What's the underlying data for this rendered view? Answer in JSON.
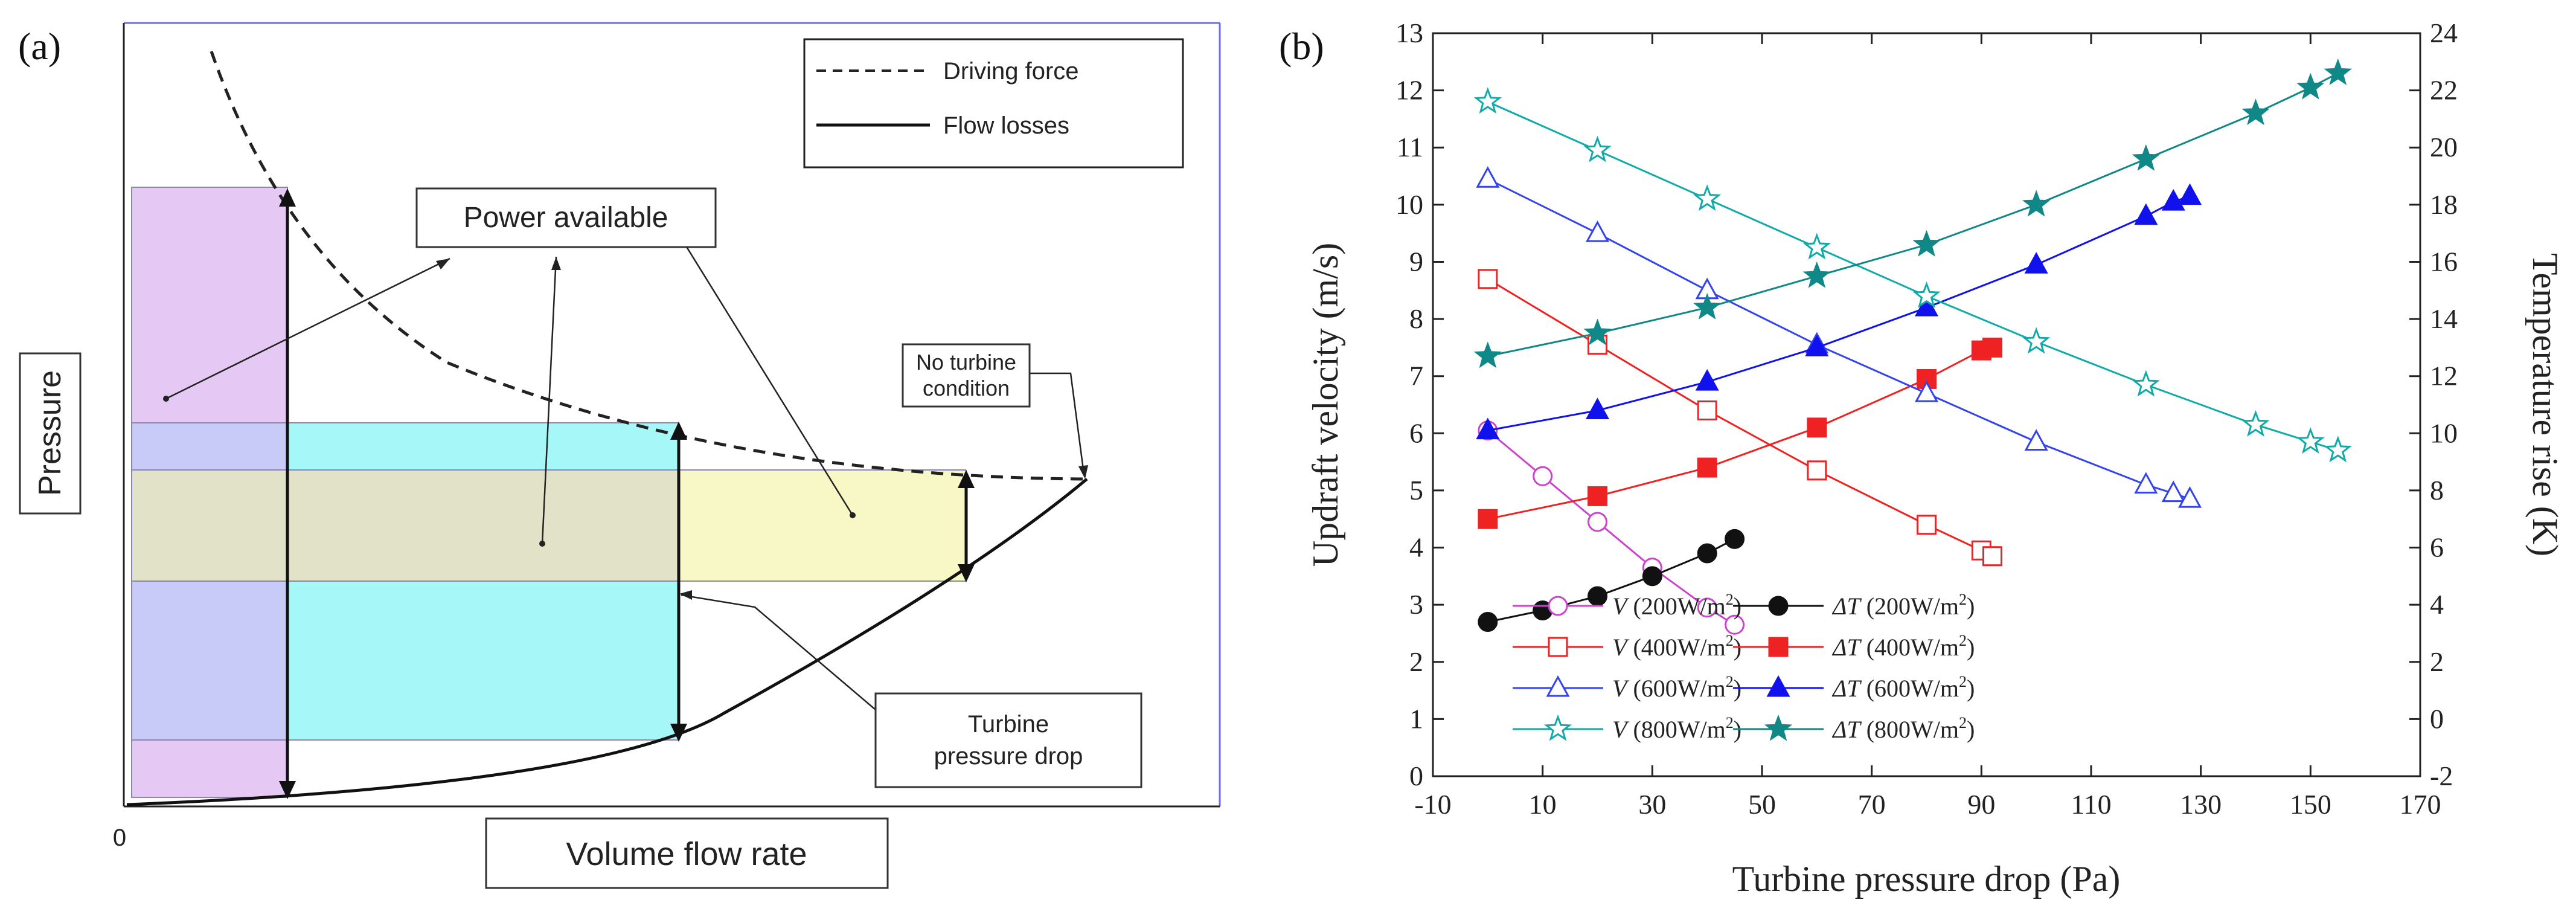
{
  "chart_data": [
    {
      "type": "diagram",
      "panel_label": "(a)",
      "ylabel": "Pressure",
      "xlabel": "Volume flow rate",
      "origin_label": "0",
      "legend": [
        {
          "label": "Driving force",
          "style": "dashed"
        },
        {
          "label": "Flow losses",
          "style": "solid"
        }
      ],
      "annotations": {
        "power_available": "Power available",
        "no_turbine_line1": "No turbine",
        "no_turbine_line2": "condition",
        "turbine_drop_line1": "Turbine",
        "turbine_drop_line2": "pressure drop"
      },
      "colors": {
        "magenta": "#e6c8f5",
        "cyan": "#a6f8f8",
        "blue": "#c8caf8",
        "yellow": "#f8f8c6",
        "olive": "#e2e2c8",
        "frame": "#6b6bf5"
      }
    },
    {
      "type": "line",
      "panel_label": "(b)",
      "xlabel": "Turbine pressure drop (Pa)",
      "ylabel_left": "Updraft velocity (m/s)",
      "ylabel_right": "Temperature rise (K)",
      "xlim": [
        -10,
        170
      ],
      "ylim_left": [
        0,
        13
      ],
      "ylim_right": [
        -2,
        24
      ],
      "x_ticks": [
        "-10",
        "10",
        "30",
        "50",
        "70",
        "90",
        "110",
        "130",
        "150",
        "170"
      ],
      "y_left_ticks": [
        "0",
        "1",
        "2",
        "3",
        "4",
        "5",
        "6",
        "7",
        "8",
        "9",
        "10",
        "11",
        "12",
        "13"
      ],
      "y_right_ticks": [
        "-2",
        "0",
        "2",
        "4",
        "6",
        "8",
        "10",
        "12",
        "14",
        "16",
        "18",
        "20",
        "22",
        "24"
      ],
      "legend_position": "bottom-left",
      "series": [
        {
          "name": "V (200W/m2)",
          "sym": "V",
          "cond": " (200W/m",
          "sup": "2",
          "close": ")",
          "axis": "left",
          "marker": "circle-open",
          "color": "#cc44cc",
          "x": [
            0,
            10,
            20,
            30,
            40,
            45
          ],
          "y": [
            6.05,
            5.25,
            4.45,
            3.65,
            2.95,
            2.65
          ]
        },
        {
          "name": "ΔT (200W/m2)",
          "sym": "ΔT",
          "cond": " (200W/m",
          "sup": "2",
          "close": ")",
          "axis": "right",
          "marker": "circle-filled",
          "color": "#111111",
          "x": [
            0,
            10,
            20,
            30,
            40,
            45
          ],
          "y": [
            3.4,
            3.8,
            4.3,
            5.0,
            5.8,
            6.3
          ]
        },
        {
          "name": "V (400W/m2)",
          "sym": "V",
          "cond": " (400W/m",
          "sup": "2",
          "close": ")",
          "axis": "left",
          "marker": "square-open",
          "color": "#ee2222",
          "x": [
            0,
            20,
            40,
            60,
            80,
            90,
            92
          ],
          "y": [
            8.7,
            7.55,
            6.4,
            5.35,
            4.4,
            3.95,
            3.85
          ]
        },
        {
          "name": "ΔT (400W/m2)",
          "sym": "ΔT",
          "cond": " (400W/m",
          "sup": "2",
          "close": ")",
          "axis": "right",
          "marker": "square-filled",
          "color": "#ee2222",
          "x": [
            0,
            20,
            40,
            60,
            80,
            90,
            92
          ],
          "y": [
            7.0,
            7.8,
            8.8,
            10.2,
            11.9,
            12.9,
            13.0
          ]
        },
        {
          "name": "V (600W/m2)",
          "sym": "V",
          "cond": " (600W/m",
          "sup": "2",
          "close": ")",
          "axis": "left",
          "marker": "triangle-open",
          "color": "#3344ee",
          "x": [
            0,
            20,
            40,
            60,
            80,
            100,
            120,
            125,
            128
          ],
          "y": [
            10.45,
            9.5,
            8.5,
            7.55,
            6.7,
            5.85,
            5.1,
            4.95,
            4.85
          ]
        },
        {
          "name": "ΔT (600W/m2)",
          "sym": "ΔT",
          "cond": " (600W/m",
          "sup": "2",
          "close": ")",
          "axis": "right",
          "marker": "triangle-filled",
          "color": "#1111ee",
          "x": [
            0,
            20,
            40,
            60,
            80,
            100,
            120,
            125,
            128
          ],
          "y": [
            10.1,
            10.8,
            11.8,
            13.0,
            14.4,
            15.9,
            17.6,
            18.1,
            18.3
          ]
        },
        {
          "name": "V (800W/m2)",
          "sym": "V",
          "cond": " (800W/m",
          "sup": "2",
          "close": ")",
          "axis": "left",
          "marker": "star-open",
          "color": "#11aaaa",
          "x": [
            0,
            20,
            40,
            60,
            80,
            100,
            120,
            140,
            150,
            155
          ],
          "y": [
            11.8,
            10.95,
            10.1,
            9.25,
            8.4,
            7.6,
            6.85,
            6.15,
            5.85,
            5.7
          ]
        },
        {
          "name": "ΔT (800W/m2)",
          "sym": "ΔT",
          "cond": " (800W/m",
          "sup": "2",
          "close": ")",
          "axis": "right",
          "marker": "star-filled",
          "color": "#118888",
          "x": [
            0,
            20,
            40,
            60,
            80,
            100,
            120,
            140,
            150,
            155
          ],
          "y": [
            12.7,
            13.5,
            14.4,
            15.5,
            16.6,
            18.0,
            19.6,
            21.2,
            22.1,
            22.6
          ]
        }
      ]
    }
  ]
}
